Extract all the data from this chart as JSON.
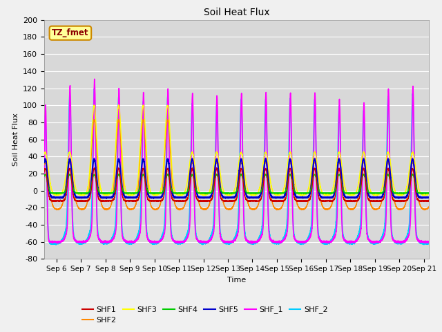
{
  "title": "Soil Heat Flux",
  "xlabel": "Time",
  "ylabel": "Soil Heat Flux",
  "ylim": [
    -80,
    200
  ],
  "xlim_days": [
    5.5,
    21.2
  ],
  "xtick_labels": [
    "Sep 6",
    "Sep 7",
    "Sep 8",
    "Sep 9",
    "Sep 10",
    "Sep 11",
    "Sep 12",
    "Sep 13",
    "Sep 14",
    "Sep 15",
    "Sep 16",
    "Sep 17",
    "Sep 18",
    "Sep 19",
    "Sep 20",
    "Sep 21"
  ],
  "xtick_positions": [
    6,
    7,
    8,
    9,
    10,
    11,
    12,
    13,
    14,
    15,
    16,
    17,
    18,
    19,
    20,
    21
  ],
  "ytick_labels": [
    "-80",
    "-60",
    "-40",
    "-20",
    "0",
    "20",
    "40",
    "60",
    "80",
    "100",
    "120",
    "140",
    "160",
    "180",
    "200"
  ],
  "ytick_values": [
    -80,
    -60,
    -40,
    -20,
    0,
    20,
    40,
    60,
    80,
    100,
    120,
    140,
    160,
    180,
    200
  ],
  "series_colors": {
    "SHF1": "#cc0000",
    "SHF2": "#ff8800",
    "SHF3": "#ffff00",
    "SHF4": "#00cc00",
    "SHF5": "#0000cc",
    "SHF_1": "#ff00ff",
    "SHF_2": "#00ccff"
  },
  "legend_label": "TZ_fmet",
  "legend_box_color": "#ffff99",
  "legend_box_border": "#cc8800",
  "fig_bg_color": "#f0f0f0",
  "plot_bg_color": "#d8d8d8",
  "grid_color": "#ffffff"
}
